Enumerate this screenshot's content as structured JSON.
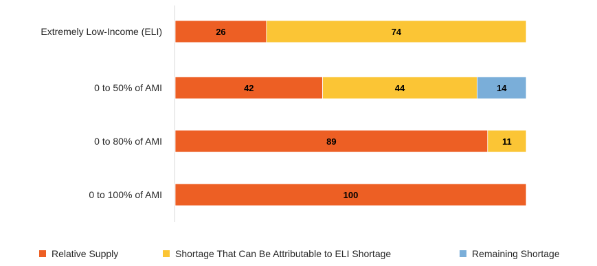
{
  "chart_data": {
    "type": "bar",
    "orientation": "horizontal",
    "stacked": true,
    "categories": [
      "Extremely Low-Income (ELI)",
      "0 to 50% of AMI",
      "0 to 80% of AMI",
      "0 to 100% of AMI"
    ],
    "series": [
      {
        "name": "Relative Supply",
        "color": "#ED5F24",
        "values": [
          26,
          42,
          89,
          100
        ]
      },
      {
        "name": "Shortage That Can Be Attributable to ELI Shortage",
        "color": "#FBC535",
        "values": [
          74,
          44,
          11,
          0
        ]
      },
      {
        "name": "Remaining Shortage",
        "color": "#7AAED9",
        "values": [
          0,
          14,
          0,
          0
        ]
      }
    ],
    "xlim": [
      0,
      100
    ],
    "title": "",
    "xlabel": "",
    "ylabel": "",
    "grid": false,
    "legend_position": "bottom"
  }
}
